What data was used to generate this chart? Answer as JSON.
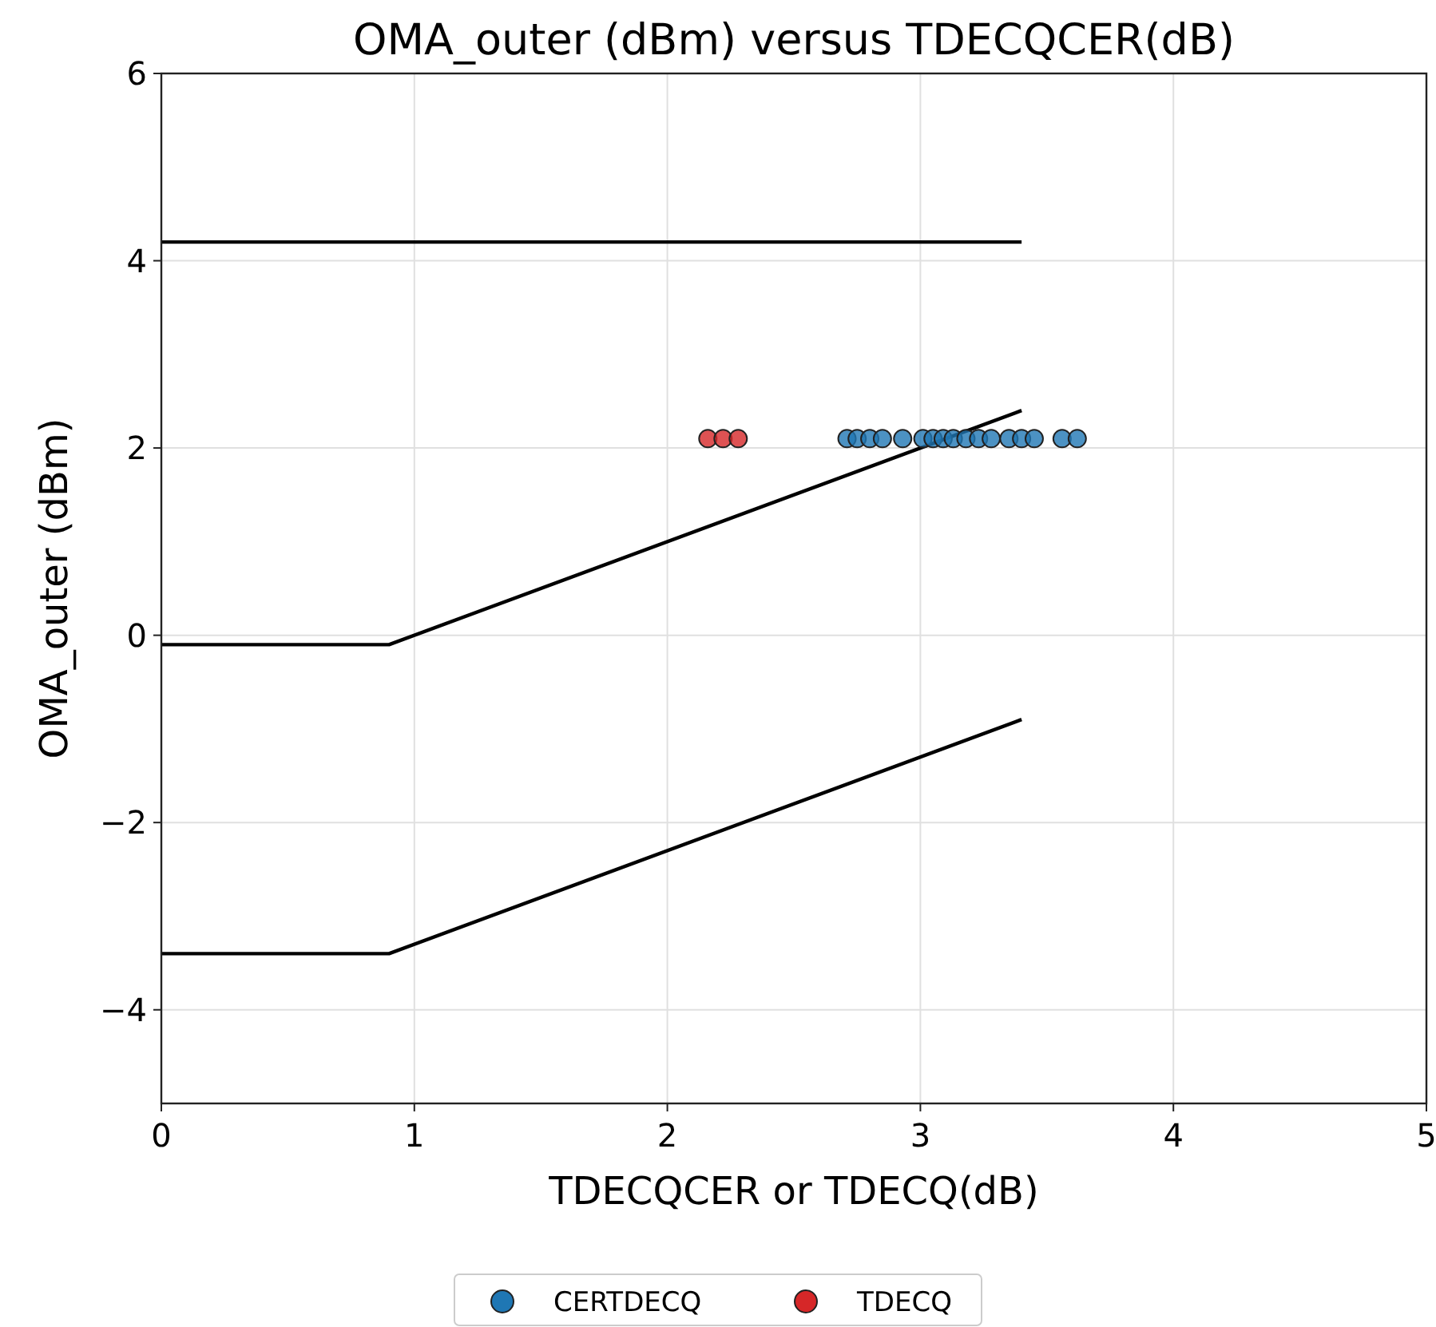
{
  "chart_data": {
    "type": "scatter",
    "title": "OMA_outer (dBm) versus TDECQCER(dB)",
    "xlabel": "TDECQCER or TDECQ(dB)",
    "ylabel": "OMA_outer (dBm)",
    "xlim": [
      0,
      5
    ],
    "xticks": [
      0,
      1,
      2,
      3,
      4,
      5
    ],
    "ylim": [
      -5,
      6
    ],
    "yticks": [
      {
        "value": -4,
        "label": "−4"
      },
      {
        "value": -2,
        "label": "−2"
      },
      0,
      2,
      4,
      6
    ],
    "grid": true,
    "legend": "bottom",
    "marker": "circle",
    "series": [
      {
        "type": "line",
        "color": "#000000",
        "marker": "none",
        "x": [
          0,
          3.4
        ],
        "values": [
          4.2,
          4.2
        ]
      },
      {
        "type": "line",
        "color": "#000000",
        "marker": "none",
        "x": [
          0,
          0.9,
          3.4
        ],
        "values": [
          -0.1,
          -0.1,
          2.4
        ]
      },
      {
        "type": "line",
        "color": "#000000",
        "marker": "none",
        "x": [
          0,
          0.9,
          3.4
        ],
        "values": [
          -3.4,
          -3.4,
          -0.9
        ]
      },
      {
        "name": "CERTDECQ",
        "color": "#1f77b4",
        "x": [
          2.71,
          2.75,
          2.8,
          2.85,
          2.93,
          3.01,
          3.05,
          3.09,
          3.13,
          3.18,
          3.23,
          3.28,
          3.35,
          3.4,
          3.45,
          3.56,
          3.62
        ],
        "values": [
          2.1,
          2.1,
          2.1,
          2.1,
          2.1,
          2.1,
          2.1,
          2.1,
          2.1,
          2.1,
          2.1,
          2.1,
          2.1,
          2.1,
          2.1,
          2.1,
          2.1
        ]
      },
      {
        "name": "TDECQ",
        "color": "#d62728",
        "x": [
          2.16,
          2.22,
          2.28
        ],
        "values": [
          2.1,
          2.1,
          2.1
        ]
      }
    ]
  }
}
